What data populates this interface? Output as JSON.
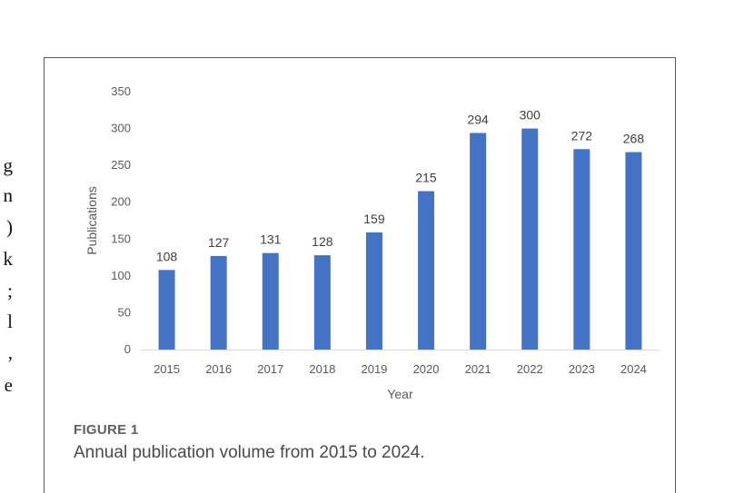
{
  "page_bleed_text": [
    "g",
    "n",
    ")",
    "k",
    ";",
    "l",
    ",",
    "e"
  ],
  "figure": {
    "label": "FIGURE 1",
    "caption": "Annual publication volume from 2015 to 2024."
  },
  "chart_data": {
    "type": "bar",
    "title": "",
    "xlabel": "Year",
    "ylabel": "Publications",
    "categories": [
      "2015",
      "2016",
      "2017",
      "2018",
      "2019",
      "2020",
      "2021",
      "2022",
      "2023",
      "2024"
    ],
    "values": [
      108,
      127,
      131,
      128,
      159,
      215,
      294,
      300,
      272,
      268
    ],
    "ylim": [
      0,
      350
    ],
    "yticks": [
      0,
      50,
      100,
      150,
      200,
      250,
      300,
      350
    ],
    "grid": false,
    "legend": "none",
    "bar_color": "#4472C4",
    "axis_color": "#d9d9d9",
    "tick_label_color": "#595959",
    "data_label_color": "#404040"
  }
}
